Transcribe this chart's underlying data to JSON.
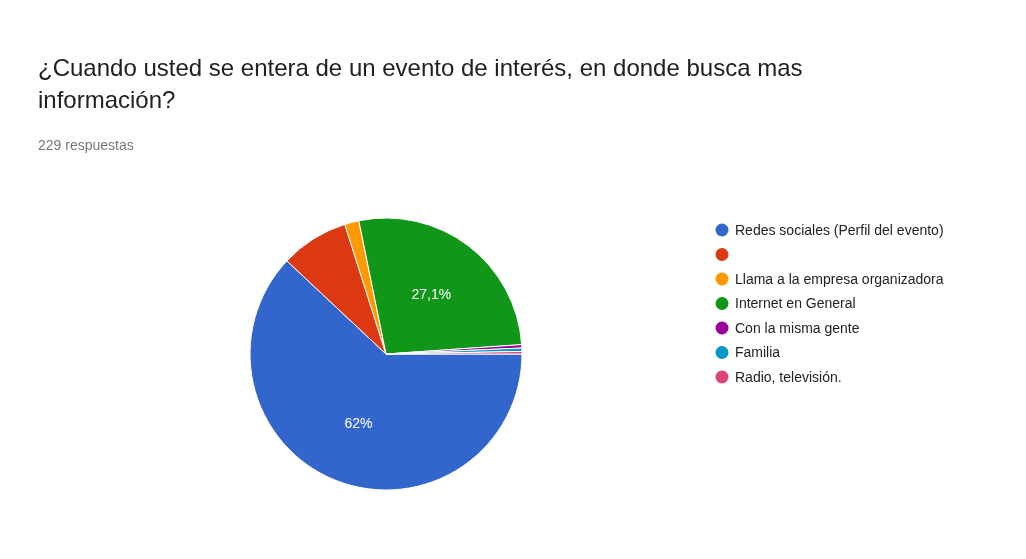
{
  "chart_data": {
    "type": "pie",
    "title": "¿Cuando usted se entera de un evento de interés, en donde busca mas información?",
    "subtitle": "229 respuestas",
    "categories": [
      "Redes sociales (Perfil del evento)",
      null,
      "Llama a la empresa organizadora",
      "Internet en General",
      "Con la misma gente",
      "Familia",
      "Radio, televisión."
    ],
    "values": [
      62,
      8.1,
      1.7,
      27.1,
      0.4,
      0.4,
      0.3
    ],
    "colors": [
      "#3366cc",
      "#dc3912",
      "#ff9900",
      "#109618",
      "#990099",
      "#0099c6",
      "#dd4477"
    ],
    "value_labels": [
      "62%",
      null,
      null,
      "27,1%",
      null,
      null,
      null
    ],
    "legend": "right"
  }
}
